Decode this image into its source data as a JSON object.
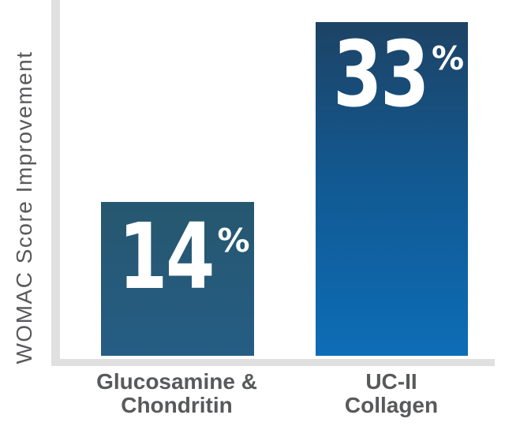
{
  "chart_data": {
    "type": "bar",
    "title": "",
    "xlabel": "",
    "ylabel": "WOMAC Score Improvement",
    "categories": [
      "Glucosamine & Chondritin",
      "UC-II Collagen"
    ],
    "values": [
      14,
      33
    ],
    "value_suffix": "%",
    "ylim": [
      0,
      36
    ],
    "grid": false,
    "legend": false,
    "axis_color": "#e0e0e0",
    "label_color": "#58595b",
    "value_text_color": "#ffffff",
    "bars": [
      {
        "label_line1": "Glucosamine &",
        "label_line2": "Chondritin",
        "value": "14",
        "color_top": "#26576f",
        "color_bottom": "#255d84"
      },
      {
        "label_line1": "UC-II",
        "label_line2": "Collagen",
        "value": "33",
        "color_top": "#1d4365",
        "color_mid": "#115a94",
        "color_bottom": "#0d6db6"
      }
    ]
  }
}
